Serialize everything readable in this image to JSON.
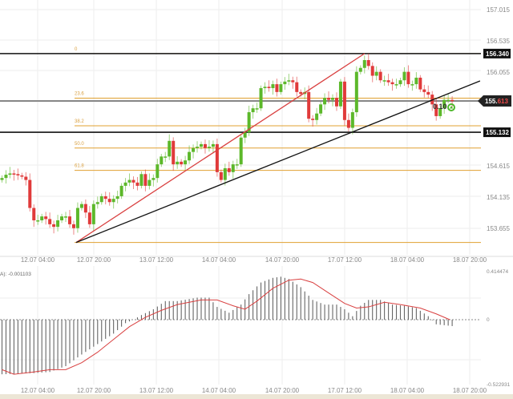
{
  "chart_data": [
    {
      "type": "candlestick",
      "price_axis": {
        "ticks": [
          "157.015",
          "156.535",
          "156.055",
          "155.613",
          "155.132",
          "154.615",
          "154.135",
          "153.655"
        ],
        "range": [
          153.38,
          157.15
        ]
      },
      "time_axis": {
        "ticks": [
          "12.07 04:00",
          "12.07 20:00",
          "13.07 12:00",
          "14.07 04:00",
          "14.07 20:00",
          "17.07 12:00",
          "18.07 04:00",
          "18.07 20:00"
        ]
      },
      "closes": [
        154.43,
        154.48,
        154.5,
        154.49,
        154.47,
        154.45,
        154.4,
        153.97,
        153.78,
        153.78,
        153.84,
        153.8,
        153.72,
        153.68,
        153.78,
        153.84,
        153.84,
        153.72,
        153.66,
        153.97,
        154.03,
        153.9,
        153.72,
        154.03,
        154.06,
        154.15,
        154.11,
        154.06,
        154.11,
        154.15,
        154.31,
        154.36,
        154.4,
        154.36,
        154.31,
        154.49,
        154.31,
        154.4,
        154.43,
        154.64,
        154.76,
        154.76,
        155.0,
        154.64,
        154.68,
        154.64,
        154.7,
        154.83,
        154.89,
        154.91,
        154.95,
        154.89,
        154.91,
        154.95,
        154.52,
        154.4,
        154.58,
        154.52,
        154.64,
        154.64,
        155.05,
        155.13,
        155.44,
        155.5,
        155.5,
        155.81,
        155.83,
        155.81,
        155.87,
        155.75,
        155.87,
        155.91,
        155.93,
        155.9,
        155.75,
        155.72,
        155.75,
        155.34,
        155.32,
        155.42,
        155.56,
        155.66,
        155.63,
        155.66,
        155.53,
        155.91,
        155.32,
        155.2,
        155.44,
        156.06,
        156.12,
        156.24,
        156.15,
        156.0,
        156.06,
        155.93,
        155.93,
        155.9,
        155.87,
        155.87,
        155.93,
        156.06,
        155.87,
        155.87,
        155.97,
        155.79,
        155.75,
        155.71,
        155.56,
        155.38,
        155.5,
        155.63,
        155.63,
        155.61
      ],
      "colors": {
        "up": "#5cb82a",
        "down": "#e03a3a"
      },
      "horizontal_levels": [
        {
          "label": "156.340",
          "price": 156.34,
          "color": "#111111"
        },
        {
          "label": "155.132",
          "price": 155.132,
          "color": "#111111"
        },
        {
          "price": 155.613,
          "color": "#888888"
        }
      ],
      "current_price": {
        "main": "155.",
        "fraction": "613"
      },
      "fibonacci": {
        "high": 156.34,
        "low": 153.44,
        "levels": [
          {
            "label": "0",
            "ratio": 0
          },
          {
            "label": "23.6",
            "ratio": 0.236
          },
          {
            "label": "38.2",
            "ratio": 0.382
          },
          {
            "label": "50.0",
            "ratio": 0.5
          },
          {
            "label": "61.8",
            "ratio": 0.618
          },
          {
            "ratio": 1.0
          }
        ],
        "color": "#e0a030"
      },
      "trendlines": [
        {
          "from_index": 18.6,
          "from_price": 153.44,
          "to_index": 91,
          "to_price": 156.34,
          "color": "#d94040"
        },
        {
          "from_index": 18.6,
          "from_price": 153.44,
          "to_index": 120,
          "to_price": 155.92,
          "color": "#111111"
        }
      ],
      "annotation": {
        "text": "0.10",
        "icon": "circle-up-arrow-icon",
        "color": "#4cb82a"
      }
    },
    {
      "type": "bar+line",
      "indicator_label": "A): -0.001103",
      "value_axis": {
        "ticks": [
          "0.414474",
          "0",
          "-0.522931"
        ],
        "range": [
          -0.522931,
          0.414474
        ]
      },
      "time_axis": {
        "ticks": [
          "12.07 04:00",
          "12.07 20:00",
          "13.07 12:00",
          "14.07 04:00",
          "14.07 20:00",
          "17.07 12:00",
          "18.07 04:00",
          "18.07 20:00"
        ]
      },
      "histogram_points": [
        [
          0,
          -0.47
        ],
        [
          8,
          -0.46
        ],
        [
          12,
          -0.45
        ],
        [
          16,
          -0.4
        ],
        [
          20,
          -0.3
        ],
        [
          24,
          -0.21
        ],
        [
          28,
          -0.12
        ],
        [
          31,
          -0.03
        ],
        [
          33,
          0.0
        ],
        [
          35,
          0.04
        ],
        [
          38,
          0.09
        ],
        [
          41,
          0.16
        ],
        [
          44,
          0.16
        ],
        [
          49,
          0.19
        ],
        [
          52,
          0.19
        ],
        [
          54,
          0.11
        ],
        [
          57,
          0.06
        ],
        [
          60,
          0.13
        ],
        [
          62,
          0.22
        ],
        [
          65,
          0.32
        ],
        [
          68,
          0.36
        ],
        [
          70,
          0.37
        ],
        [
          72,
          0.35
        ],
        [
          75,
          0.28
        ],
        [
          78,
          0.17
        ],
        [
          81,
          0.13
        ],
        [
          84,
          0.13
        ],
        [
          86,
          0.09
        ],
        [
          88,
          0.03
        ],
        [
          90,
          0.12
        ],
        [
          92,
          0.17
        ],
        [
          95,
          0.17
        ],
        [
          98,
          0.13
        ],
        [
          101,
          0.12
        ],
        [
          104,
          0.1
        ],
        [
          107,
          0.03
        ],
        [
          109,
          -0.04
        ],
        [
          113,
          -0.055
        ]
      ],
      "signal_points": [
        [
          0,
          -0.43
        ],
        [
          3,
          -0.47
        ],
        [
          8,
          -0.45
        ],
        [
          12,
          -0.43
        ],
        [
          16,
          -0.43
        ],
        [
          20,
          -0.37
        ],
        [
          24,
          -0.28
        ],
        [
          28,
          -0.17
        ],
        [
          32,
          -0.06
        ],
        [
          36,
          0.02
        ],
        [
          40,
          0.08
        ],
        [
          44,
          0.13
        ],
        [
          50,
          0.17
        ],
        [
          54,
          0.17
        ],
        [
          58,
          0.12
        ],
        [
          61,
          0.09
        ],
        [
          64,
          0.16
        ],
        [
          68,
          0.27
        ],
        [
          72,
          0.34
        ],
        [
          75,
          0.35
        ],
        [
          78,
          0.32
        ],
        [
          82,
          0.23
        ],
        [
          86,
          0.14
        ],
        [
          89,
          0.1
        ],
        [
          92,
          0.11
        ],
        [
          96,
          0.15
        ],
        [
          100,
          0.13
        ],
        [
          105,
          0.1
        ],
        [
          109,
          0.05
        ],
        [
          112.4,
          0
        ]
      ],
      "colors": {
        "histogram": "#666666",
        "signal": "#d94040"
      }
    }
  ]
}
